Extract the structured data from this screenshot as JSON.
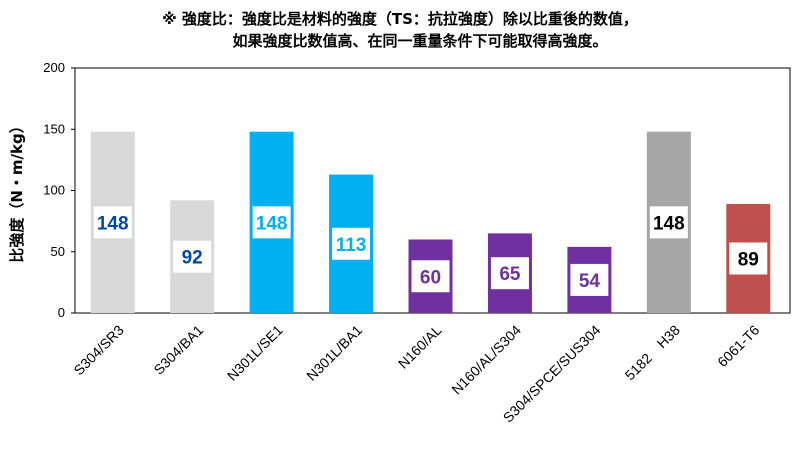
{
  "note": {
    "line1": "※ 強度比：強度比是材料的強度（TS：抗拉強度）除以比重後的数值，",
    "line2": "如果強度比数值高、在同一重量条件下可能取得高強度。"
  },
  "chart_data": {
    "type": "bar",
    "title": "",
    "xlabel": "",
    "ylabel": "比強度（N・m/kg）",
    "ylim": [
      0,
      200
    ],
    "yticks": [
      0,
      50,
      100,
      150,
      200
    ],
    "grid": false,
    "legend": "none",
    "categories": [
      "S304/SR3",
      "S304/BA1",
      "N301L/SE1",
      "N301L/BA1",
      "N160/AL",
      "N160/AL/S304",
      "S304/SPCE/SUS304",
      "5182　H38",
      "6061-T6"
    ],
    "values": [
      148,
      92,
      148,
      113,
      60,
      65,
      54,
      148,
      89
    ],
    "bar_colors": [
      "#d9d9d9",
      "#d9d9d9",
      "#00b0f0",
      "#00b0f0",
      "#7030a0",
      "#7030a0",
      "#7030a0",
      "#a6a6a6",
      "#c0504d"
    ],
    "label_colors": [
      "#0047ab",
      "#0047ab",
      "#00b0f0",
      "#00b0f0",
      "#7030a0",
      "#7030a0",
      "#7030a0",
      "#000000",
      "#000000"
    ]
  }
}
